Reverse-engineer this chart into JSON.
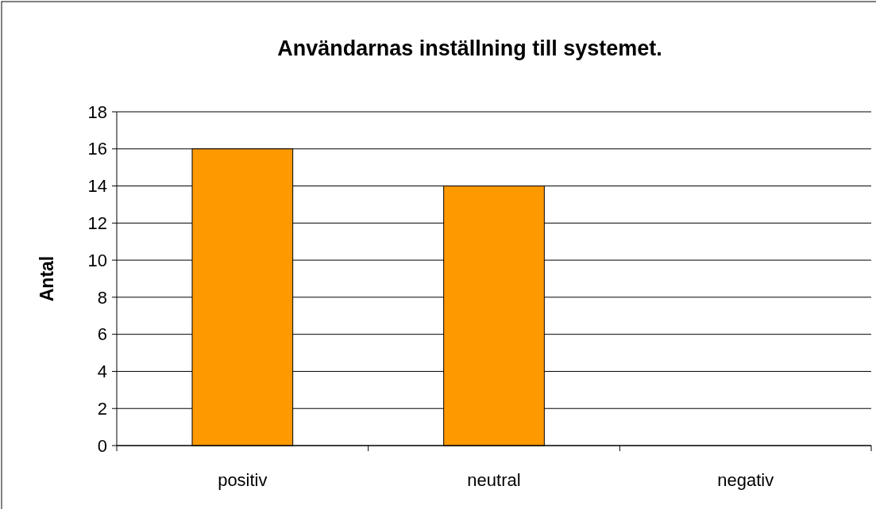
{
  "chart_data": {
    "type": "bar",
    "title": "Användarnas inställning till systemet.",
    "ylabel": "Antal",
    "categories": [
      "positiv",
      "neutral",
      "negativ"
    ],
    "values": [
      16,
      14,
      0
    ],
    "color": "#ff9900",
    "ylim": [
      0,
      18
    ],
    "yticks": [
      0,
      2,
      4,
      6,
      8,
      10,
      12,
      14,
      16,
      18
    ],
    "grid": "y"
  }
}
